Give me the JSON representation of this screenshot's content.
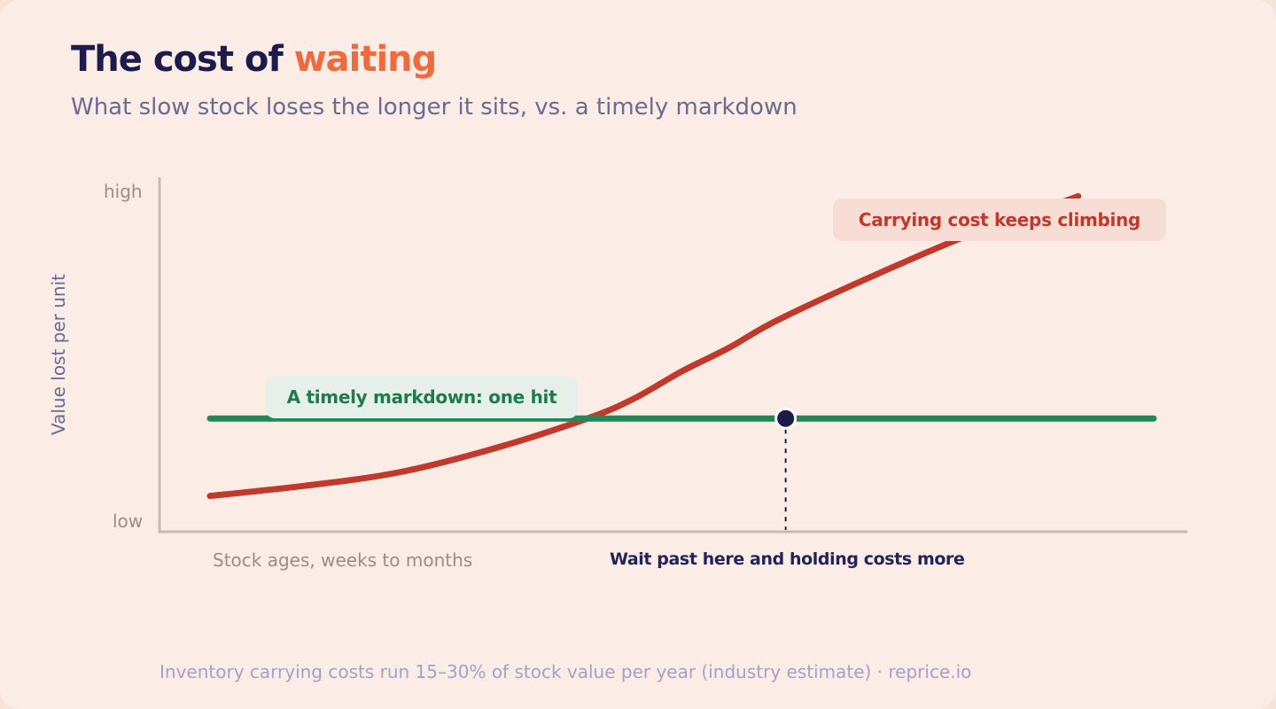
{
  "title": {
    "prefix": "The cost of",
    "accent": "waiting"
  },
  "subtitle": "What slow stock loses the longer it sits, vs. a timely markdown",
  "footer": "Inventory carrying costs run 15–30% of stock value per year (industry estimate) · reprice.io",
  "colors": {
    "carrying_cost": "#c0392b",
    "markdown": "#1f8a57",
    "marker": "#1c1c4c",
    "title_accent": "#ef6a3c",
    "axis": "#c8bbb3"
  },
  "chart_data": {
    "type": "line",
    "title": "The cost of waiting",
    "ylabel": "Value lost per unit",
    "xlabel": "Stock ages, weeks to months",
    "y_ticks": [
      "high",
      "low"
    ],
    "ylim": [
      0,
      100
    ],
    "xlim": [
      0,
      100
    ],
    "grid": false,
    "series": [
      {
        "name": "Carrying cost keeps climbing",
        "x": [
          0,
          10,
          20,
          30,
          40,
          45,
          50,
          55,
          60,
          70,
          80,
          90,
          92
        ],
        "y": [
          8,
          11,
          15,
          22,
          31,
          37,
          45,
          52,
          60,
          73,
          85,
          95,
          97
        ]
      },
      {
        "name": "A timely markdown: one hit",
        "x": [
          0,
          100
        ],
        "y": [
          31,
          31
        ]
      }
    ],
    "annotations": [
      {
        "label": "Wait past here and holding costs more",
        "x": 61,
        "y": 31
      }
    ]
  }
}
